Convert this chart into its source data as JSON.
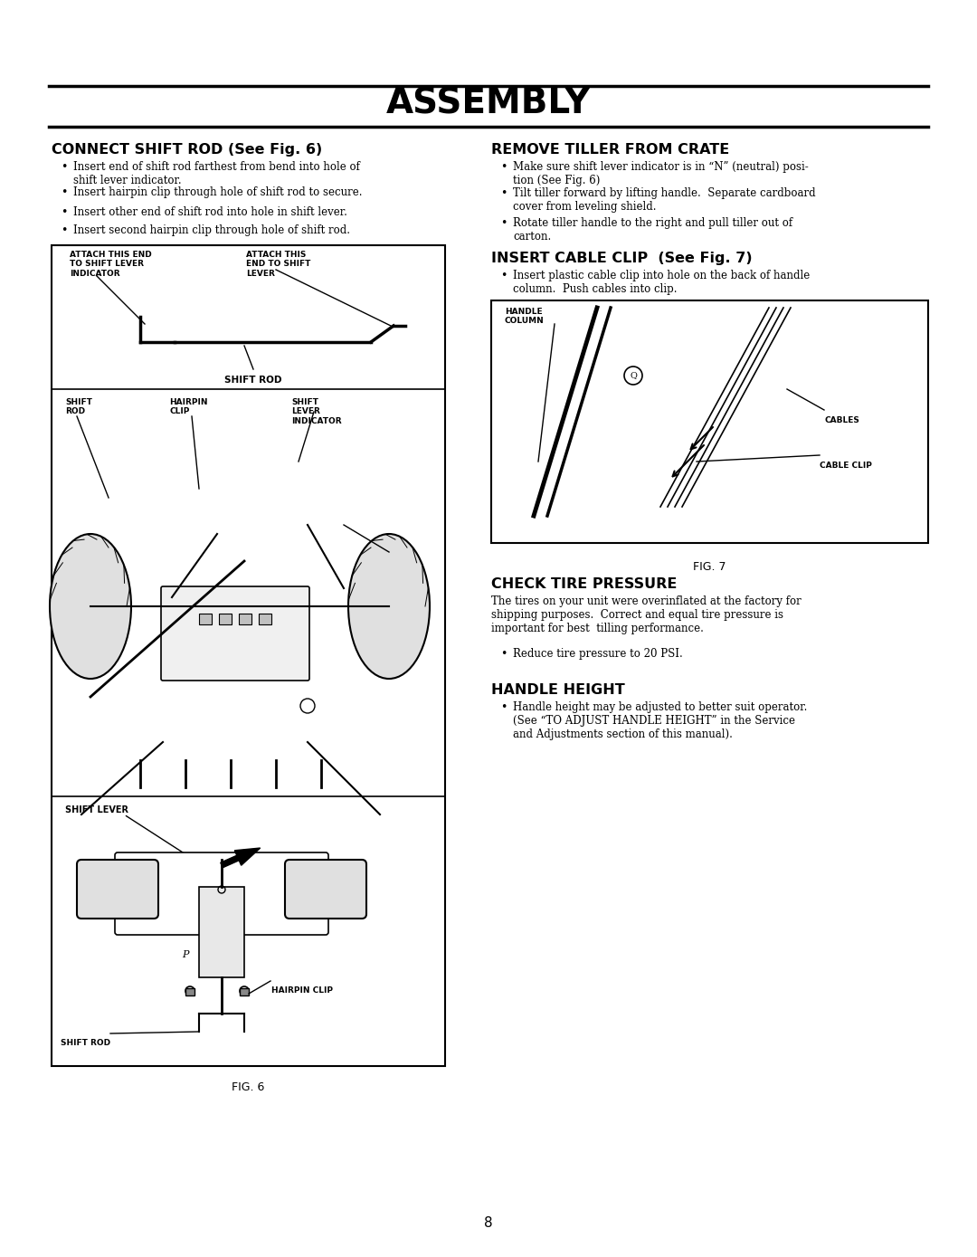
{
  "page_number": "8",
  "title": "ASSEMBLY",
  "bg_color": "#ffffff",
  "text_color": "#000000",
  "left_section": {
    "heading": "CONNECT SHIFT ROD (See Fig. 6)",
    "bullets": [
      "Insert end of shift rod farthest from bend into hole of\nshift lever indicator.",
      "Insert hairpin clip through hole of shift rod to secure.",
      "Insert other end of shift rod into hole in shift lever.",
      "Insert second hairpin clip through hole of shift rod."
    ],
    "fig_label": "FIG. 6"
  },
  "right_section": {
    "heading1": "REMOVE TILLER FROM CRATE",
    "bullets1": [
      "Make sure shift lever indicator is in \"N\" (neutral) posi-\ntion (See Fig. 6)",
      "Tilt tiller forward by lifting handle.  Separate cardboard\ncover from leveling shield.",
      "Rotate tiller handle to the right and pull tiller out of\ncarton."
    ],
    "heading2": "INSERT CABLE CLIP  (See Fig. 7)",
    "bullets2": [
      "Insert plastic cable clip into hole on the back of handle\ncolumn.  Push cables into clip."
    ],
    "fig_label": "FIG. 7",
    "heading3": "CHECK TIRE PRESSURE",
    "para3": "The tires on your unit were overinflated at the factory for\nshipping purposes.  Correct and equal tire pressure is\nimportant for best  tilling performance.",
    "bullets3": [
      "Reduce tire pressure to 20 PSI."
    ],
    "heading4": "HANDLE HEIGHT",
    "bullets4": [
      "Handle height may be adjusted to better suit operator.\n(See \"TO ADJUST HANDLE HEIGHT\" in the Service\nand Adjustments section of this manual)."
    ]
  }
}
